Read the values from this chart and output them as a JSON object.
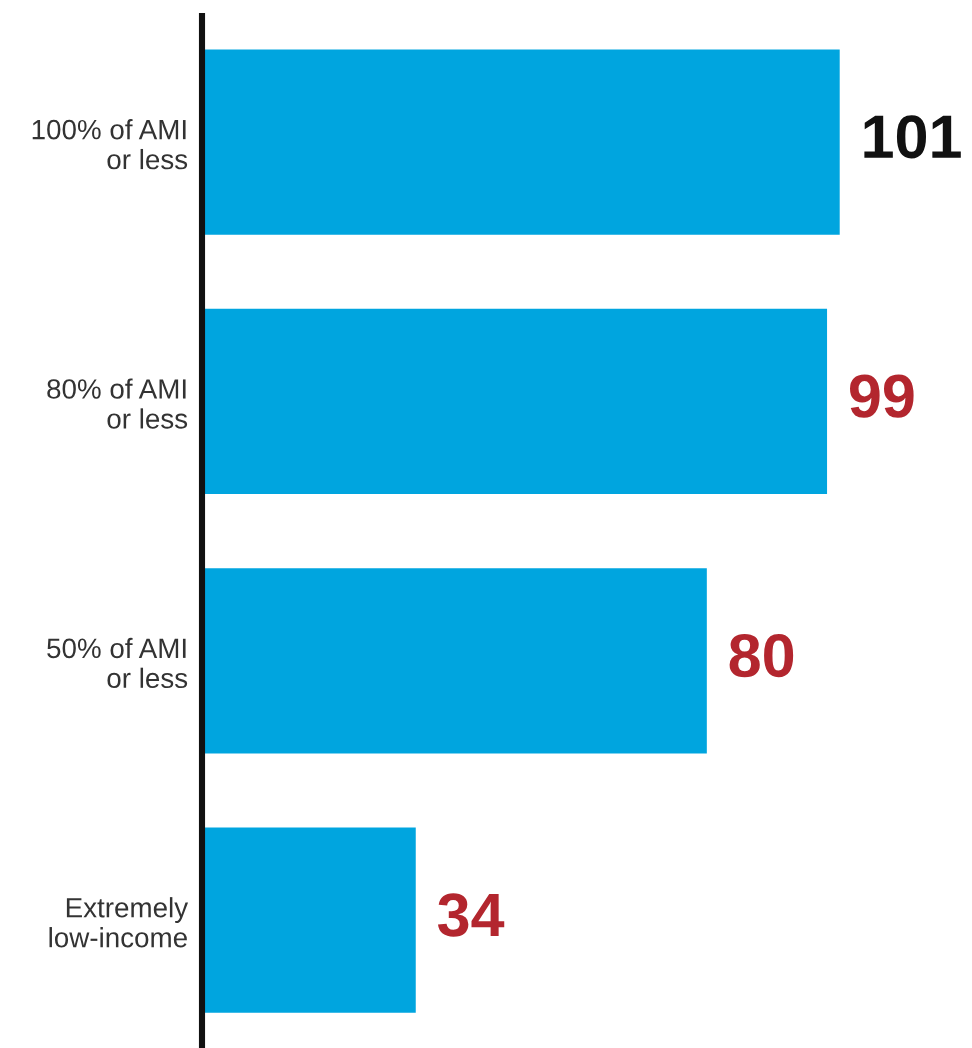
{
  "chart_data": {
    "type": "bar",
    "orientation": "horizontal",
    "categories": [
      "100% of AMI\nor less",
      "80% of AMI\nor less",
      "50% of AMI\nor less",
      "Extremely\nlow-income"
    ],
    "values": [
      101,
      99,
      80,
      34
    ],
    "color": "#00a5df",
    "data_labels": true,
    "grid": false,
    "legend": false
  }
}
